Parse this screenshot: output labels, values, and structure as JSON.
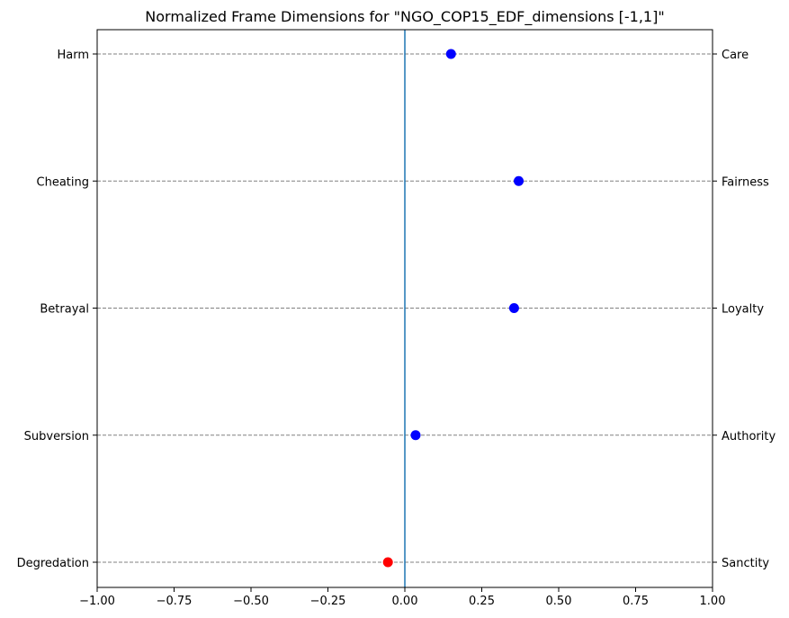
{
  "chart_data": {
    "type": "scatter",
    "title": "Normalized Frame Dimensions for \"NGO_COP15_EDF_dimensions [-1,1]\"",
    "xlim": [
      -1,
      1
    ],
    "x_ticks": [
      "−1.00",
      "−0.75",
      "−0.50",
      "−0.25",
      "0.00",
      "0.25",
      "0.50",
      "0.75",
      "1.00"
    ],
    "x_tick_values": [
      -1,
      -0.75,
      -0.5,
      -0.25,
      0,
      0.25,
      0.5,
      0.75,
      1
    ],
    "grid": "horizontal dashed",
    "reference_line_x": 0,
    "rows": [
      {
        "left_label": "Harm",
        "right_label": "Care",
        "value": 0.15,
        "color": "#0000ff"
      },
      {
        "left_label": "Cheating",
        "right_label": "Fairness",
        "value": 0.37,
        "color": "#0000ff"
      },
      {
        "left_label": "Betrayal",
        "right_label": "Loyalty",
        "value": 0.355,
        "color": "#0000ff"
      },
      {
        "left_label": "Subversion",
        "right_label": "Authority",
        "value": 0.035,
        "color": "#0000ff"
      },
      {
        "left_label": "Degredation",
        "right_label": "Sanctity",
        "value": -0.055,
        "color": "#ff0000"
      }
    ],
    "colors": {
      "positive": "#0000ff",
      "negative": "#ff0000",
      "zero_line": "#1f77b4",
      "grid": "#808080"
    }
  }
}
